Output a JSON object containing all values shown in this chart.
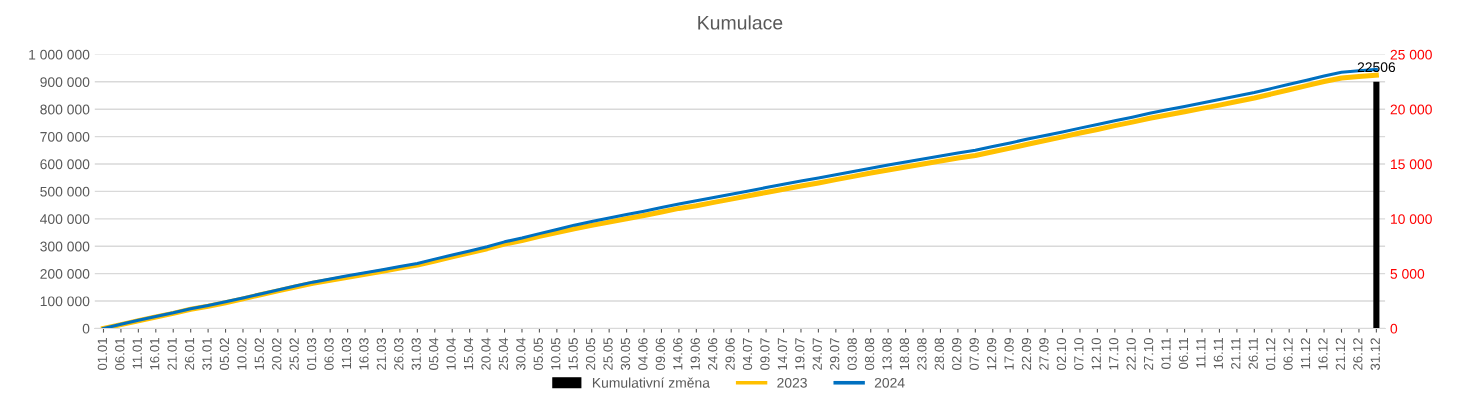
{
  "chart_data": {
    "type": "line",
    "title": "Kumulace",
    "categories": [
      "01.01",
      "06.01",
      "11.01",
      "16.01",
      "21.01",
      "26.01",
      "31.01",
      "05.02",
      "10.02",
      "15.02",
      "20.02",
      "25.02",
      "01.03",
      "06.03",
      "11.03",
      "16.03",
      "21.03",
      "26.03",
      "31.03",
      "05.04",
      "10.04",
      "15.04",
      "20.04",
      "25.04",
      "30.04",
      "05.05",
      "10.05",
      "15.05",
      "20.05",
      "25.05",
      "30.05",
      "04.06",
      "09.06",
      "14.06",
      "19.06",
      "24.06",
      "29.06",
      "04.07",
      "09.07",
      "14.07",
      "19.07",
      "24.07",
      "29.07",
      "03.08",
      "08.08",
      "13.08",
      "18.08",
      "23.08",
      "28.08",
      "02.09",
      "07.09",
      "12.09",
      "17.09",
      "22.09",
      "27.09",
      "02.10",
      "07.10",
      "12.10",
      "17.10",
      "22.10",
      "27.10",
      "01.11",
      "06.11",
      "11.11",
      "16.11",
      "21.11",
      "26.11",
      "01.12",
      "06.12",
      "11.12",
      "16.12",
      "21.12",
      "26.12",
      "31.12"
    ],
    "series": [
      {
        "name": "Kumulativní změna",
        "type": "bar",
        "axis": "y2",
        "color": "#000000",
        "value_labels": [
          null,
          null,
          null,
          null,
          null,
          null,
          null,
          null,
          null,
          null,
          null,
          null,
          null,
          null,
          null,
          null,
          null,
          null,
          null,
          null,
          null,
          null,
          null,
          null,
          null,
          null,
          null,
          null,
          null,
          null,
          null,
          null,
          null,
          null,
          null,
          null,
          null,
          null,
          null,
          null,
          null,
          null,
          null,
          null,
          null,
          null,
          null,
          null,
          null,
          null,
          null,
          null,
          null,
          null,
          null,
          null,
          null,
          null,
          null,
          null,
          null,
          null,
          null,
          null,
          null,
          null,
          null,
          null,
          null,
          null,
          null,
          null,
          null,
          "22506"
        ],
        "values": [
          null,
          null,
          null,
          null,
          null,
          null,
          null,
          null,
          null,
          null,
          null,
          null,
          null,
          null,
          null,
          null,
          null,
          null,
          null,
          null,
          null,
          null,
          null,
          null,
          null,
          null,
          null,
          null,
          null,
          null,
          null,
          null,
          null,
          null,
          null,
          null,
          null,
          null,
          null,
          null,
          null,
          null,
          null,
          null,
          null,
          null,
          null,
          null,
          null,
          null,
          null,
          null,
          null,
          null,
          null,
          null,
          null,
          null,
          null,
          null,
          null,
          null,
          null,
          null,
          null,
          null,
          null,
          null,
          null,
          null,
          null,
          null,
          null,
          22506
        ]
      },
      {
        "name": "2023",
        "color": "#ffc000",
        "values": [
          0,
          14000,
          28000,
          42000,
          55000,
          70000,
          81000,
          94000,
          108000,
          123000,
          137000,
          151000,
          165000,
          176000,
          187000,
          198000,
          209000,
          220000,
          231000,
          246000,
          261000,
          276000,
          291000,
          308000,
          321000,
          336000,
          350000,
          364000,
          376000,
          388000,
          400000,
          412000,
          425000,
          438000,
          448000,
          460000,
          472000,
          484000,
          496000,
          508000,
          520000,
          531000,
          543000,
          555000,
          567000,
          578000,
          589000,
          600000,
          611000,
          622000,
          631000,
          645000,
          658000,
          672000,
          686000,
          699000,
          713000,
          726000,
          740000,
          753000,
          767000,
          779000,
          791000,
          803000,
          815000,
          828000,
          841000,
          856000,
          871000,
          886000,
          901000,
          914000,
          919000,
          924000
        ]
      },
      {
        "name": "2024",
        "color": "#0070c0",
        "values": [
          0,
          15000,
          30000,
          44000,
          57000,
          72000,
          84000,
          97000,
          111000,
          126000,
          140000,
          155000,
          169000,
          180000,
          192000,
          203000,
          214000,
          226000,
          237000,
          253000,
          268000,
          283000,
          298000,
          316000,
          330000,
          346000,
          361000,
          377000,
          390000,
          403000,
          416000,
          428000,
          441000,
          454000,
          466000,
          478000,
          490000,
          502000,
          514000,
          526000,
          538000,
          549000,
          561000,
          573000,
          585000,
          596000,
          607000,
          618000,
          629000,
          640000,
          650000,
          664000,
          677000,
          691000,
          704000,
          717000,
          731000,
          744000,
          758000,
          771000,
          785000,
          798000,
          810000,
          823000,
          835000,
          848000,
          861000,
          876000,
          891000,
          906000,
          921000,
          935000,
          940000,
          945000
        ]
      }
    ],
    "ylim": [
      0,
      1000000
    ],
    "yticks": [
      {
        "value": 0,
        "label": "0"
      },
      {
        "value": 100000,
        "label": "100 000"
      },
      {
        "value": 200000,
        "label": "200 000"
      },
      {
        "value": 300000,
        "label": "300 000"
      },
      {
        "value": 400000,
        "label": "400 000"
      },
      {
        "value": 500000,
        "label": "500 000"
      },
      {
        "value": 600000,
        "label": "600 000"
      },
      {
        "value": 700000,
        "label": "700 000"
      },
      {
        "value": 800000,
        "label": "800 000"
      },
      {
        "value": 900000,
        "label": "900 000"
      },
      {
        "value": 1000000,
        "label": "1 000 000"
      }
    ],
    "y2lim": [
      0,
      25000
    ],
    "y2ticks": [
      {
        "value": 0,
        "label": "0"
      },
      {
        "value": 5000,
        "label": "5 000"
      },
      {
        "value": 10000,
        "label": "10 000"
      },
      {
        "value": 15000,
        "label": "15 000"
      },
      {
        "value": 20000,
        "label": "20 000"
      },
      {
        "value": 25000,
        "label": "25 000"
      }
    ],
    "grid": "y",
    "legend": "bottom",
    "marker": "none",
    "line_style": "solid"
  }
}
